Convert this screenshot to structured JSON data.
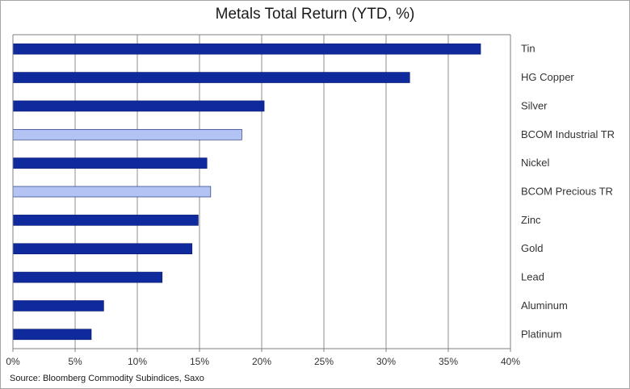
{
  "title": "Metals Total Return (YTD, %)",
  "source": "Source: Bloomberg Commodity Subindices, Saxo",
  "colors": {
    "metal": "#0f2a9c",
    "index": "#b3c3f4",
    "grid": "#8c8c8c",
    "axis": "#7f7f7f"
  },
  "chart_data": {
    "type": "bar",
    "orientation": "horizontal",
    "title": "Metals Total Return (YTD, %)",
    "xlabel": "",
    "ylabel": "",
    "categories": [
      "Tin",
      "HG Copper",
      "Silver",
      "BCOM Industrial TR",
      "Nickel",
      "BCOM Precious TR",
      "Zinc",
      "Gold",
      "Lead",
      "Aluminum",
      "Platinum"
    ],
    "values": [
      37.6,
      31.9,
      20.2,
      18.4,
      15.6,
      15.9,
      14.9,
      14.4,
      12.0,
      7.3,
      6.3
    ],
    "kind": [
      "metal",
      "metal",
      "metal",
      "index",
      "metal",
      "index",
      "metal",
      "metal",
      "metal",
      "metal",
      "metal"
    ],
    "xlim": [
      0,
      40
    ],
    "xticks": [
      0,
      5,
      10,
      15,
      20,
      25,
      30,
      35,
      40
    ],
    "xtick_labels": [
      "0%",
      "5%",
      "10%",
      "15%",
      "20%",
      "25%",
      "30%",
      "35%",
      "40%"
    ],
    "grid": true,
    "legend": "none",
    "category_axis_position": "right"
  }
}
